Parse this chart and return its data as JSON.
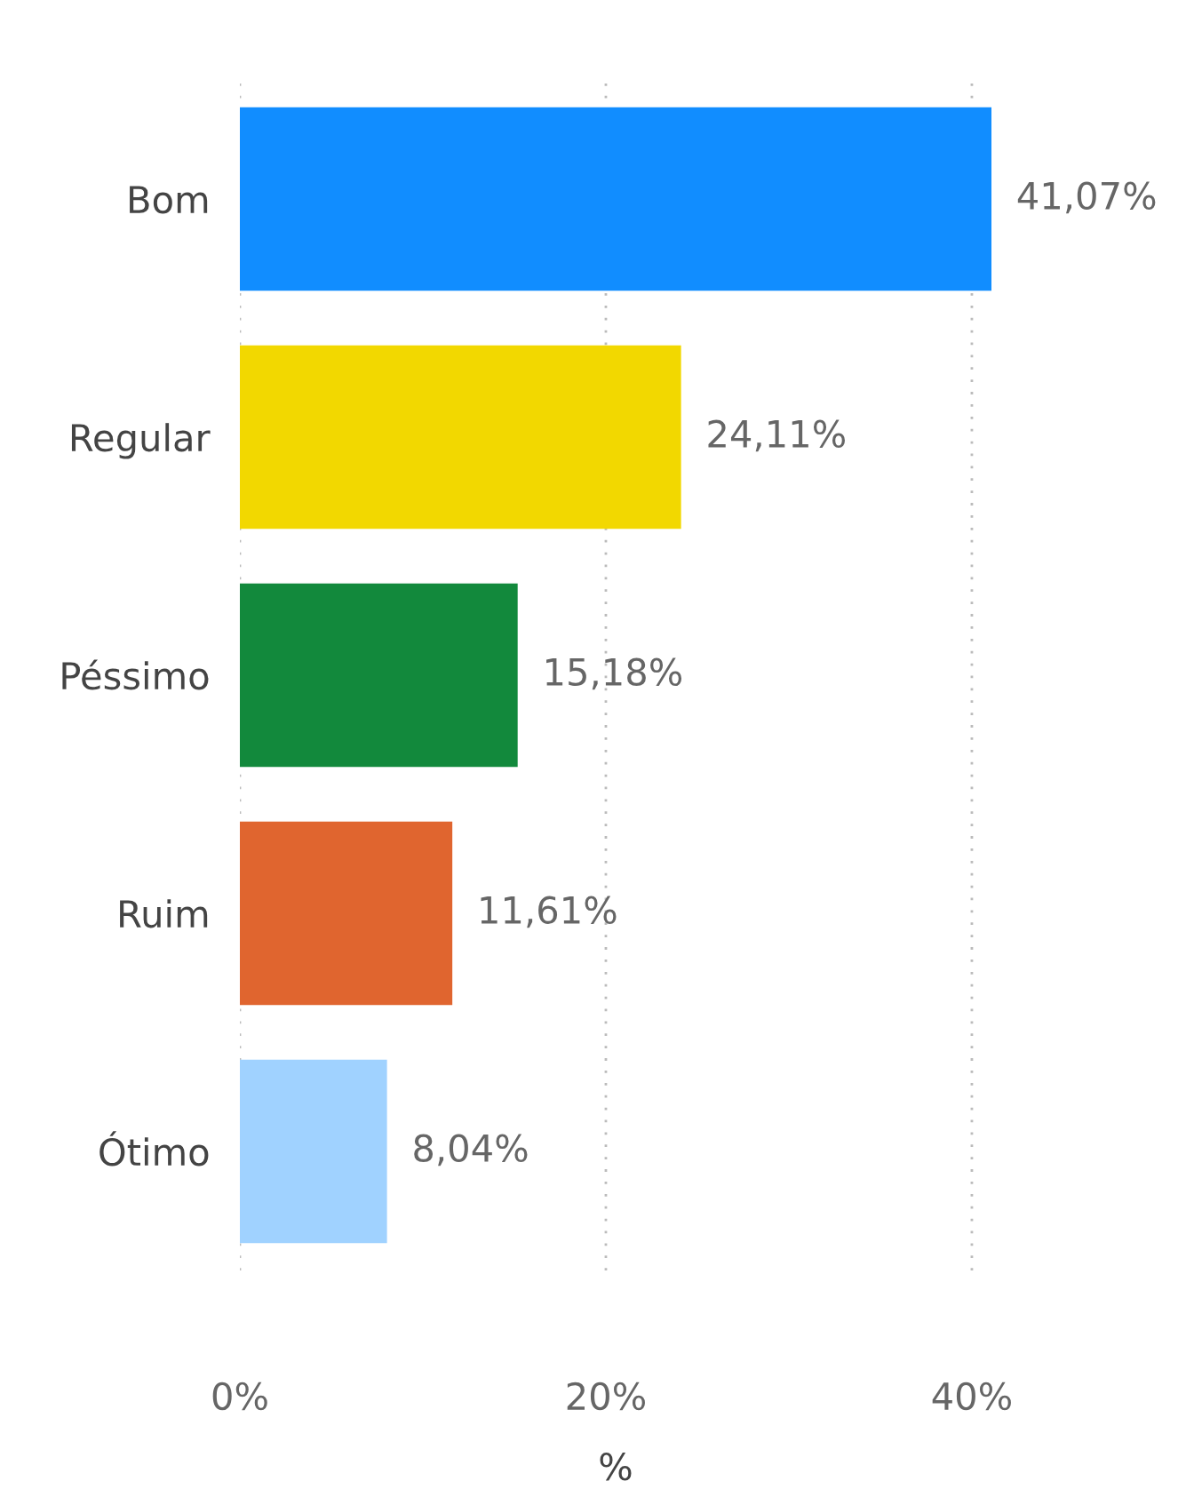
{
  "chart_data": {
    "type": "bar",
    "orientation": "horizontal",
    "xlabel": "%",
    "categories": [
      "Bom",
      "Regular",
      "Péssimo",
      "Ruim",
      "Ótimo"
    ],
    "values": [
      41.07,
      24.11,
      15.18,
      11.61,
      8.04
    ],
    "value_labels": [
      "41,07%",
      "24,11%",
      "15,18%",
      "11,61%",
      "8,04%"
    ],
    "colors": [
      "#118dff",
      "#f2d800",
      "#12893c",
      "#e0652f",
      "#a0d2ff"
    ],
    "xlim": [
      0,
      41.07
    ],
    "xticks": [
      {
        "value": 0,
        "label": "0%"
      },
      {
        "value": 20,
        "label": "20%"
      },
      {
        "value": 40,
        "label": "40%"
      }
    ],
    "grid": "x",
    "legend": false
  }
}
